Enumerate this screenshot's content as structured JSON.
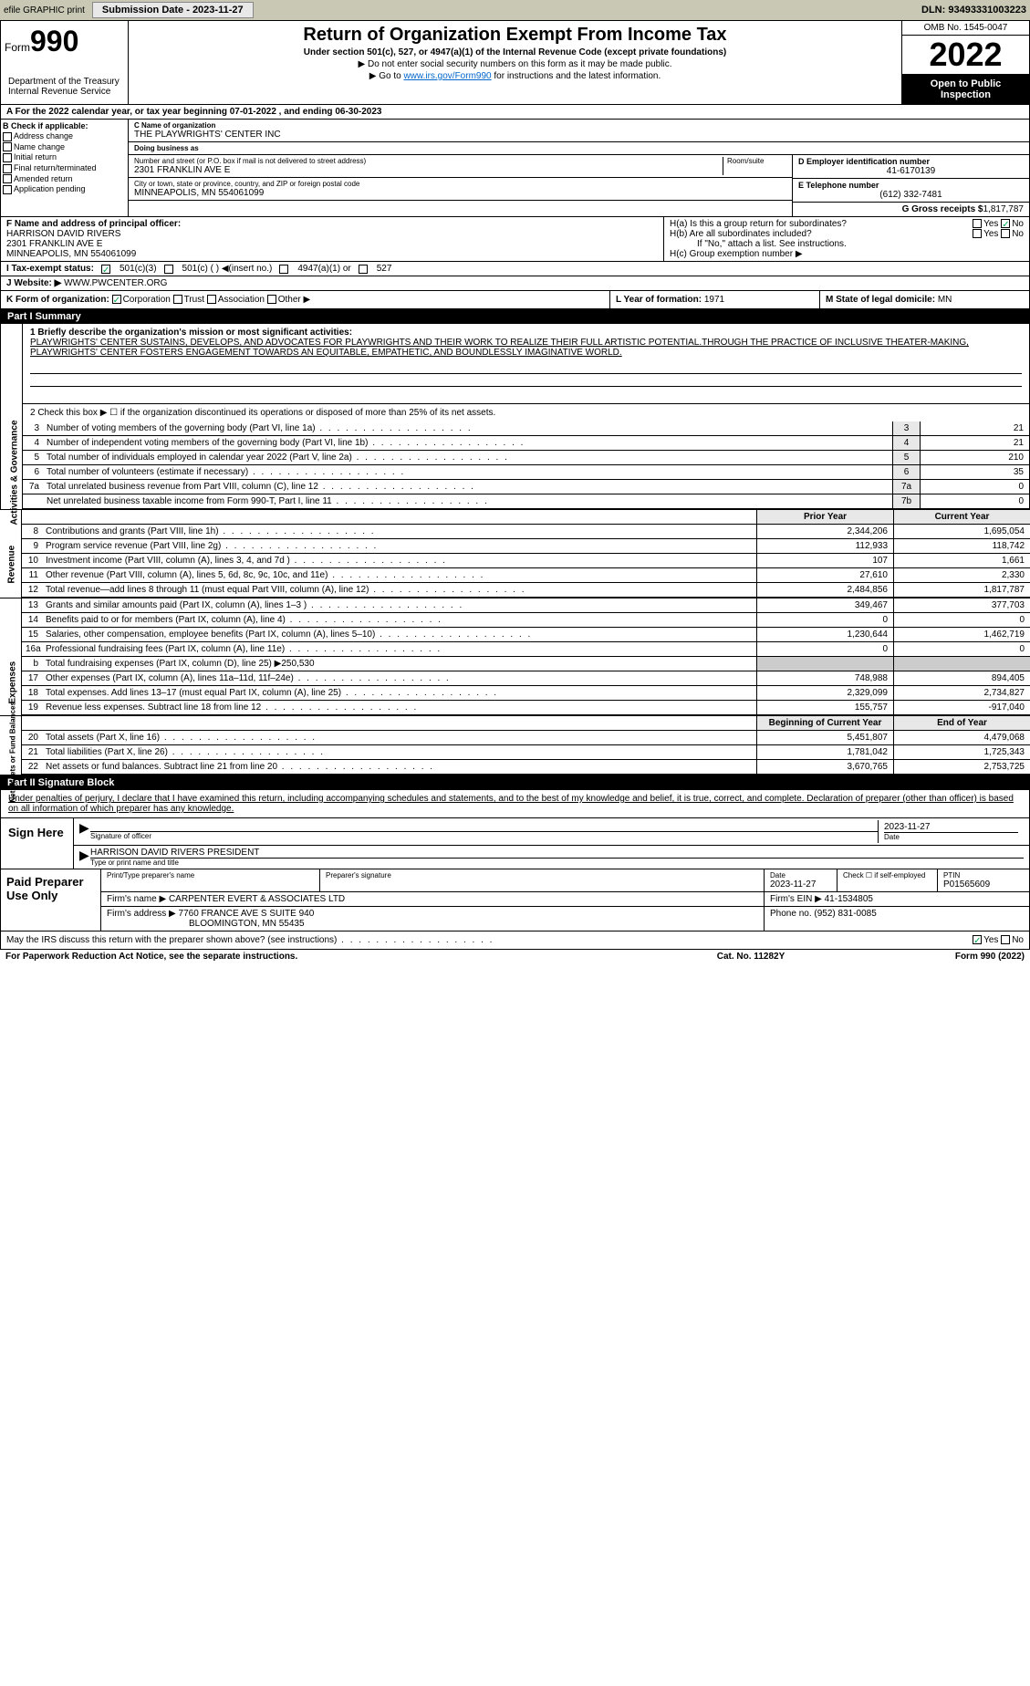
{
  "topbar": {
    "efile": "efile GRAPHIC print",
    "submission_btn": "Submission Date - 2023-11-27",
    "dln": "DLN: 93493331003223"
  },
  "header": {
    "form_prefix": "Form",
    "form_number": "990",
    "title": "Return of Organization Exempt From Income Tax",
    "subtitle": "Under section 501(c), 527, or 4947(a)(1) of the Internal Revenue Code (except private foundations)",
    "note1": "▶ Do not enter social security numbers on this form as it may be made public.",
    "note2_pre": "▶ Go to ",
    "note2_link": "www.irs.gov/Form990",
    "note2_post": " for instructions and the latest information.",
    "omb": "OMB No. 1545-0047",
    "year": "2022",
    "open_pub": "Open to Public Inspection",
    "dept": "Department of the Treasury Internal Revenue Service"
  },
  "sectionA": "A For the 2022 calendar year, or tax year beginning 07-01-2022    , and ending 06-30-2023",
  "checkboxes": {
    "hdr": "B Check if applicable:",
    "addr": "Address change",
    "name": "Name change",
    "init": "Initial return",
    "final": "Final return/terminated",
    "amend": "Amended return",
    "app": "Application pending"
  },
  "org": {
    "name_lbl": "C Name of organization",
    "name": "THE PLAYWRIGHTS' CENTER INC",
    "dba_lbl": "Doing business as",
    "dba": "",
    "addr_lbl": "Number and street (or P.O. box if mail is not delivered to street address)",
    "room_lbl": "Room/suite",
    "addr": "2301 FRANKLIN AVE E",
    "city_lbl": "City or town, state or province, country, and ZIP or foreign postal code",
    "city": "MINNEAPOLIS, MN  554061099"
  },
  "right": {
    "ein_lbl": "D Employer identification number",
    "ein": "41-6170139",
    "phone_lbl": "E Telephone number",
    "phone": "(612) 332-7481",
    "gross_lbl": "G Gross receipts $",
    "gross": "1,817,787"
  },
  "f": {
    "lbl": "F Name and address of principal officer:",
    "name": "HARRISON DAVID RIVERS",
    "addr1": "2301 FRANKLIN AVE E",
    "addr2": "MINNEAPOLIS, MN  554061099"
  },
  "h": {
    "a": "H(a)  Is this a group return for subordinates?",
    "b": "H(b)  Are all subordinates included?",
    "b_note": "If \"No,\" attach a list. See instructions.",
    "c": "H(c)  Group exemption number ▶",
    "yes": "Yes",
    "no": "No"
  },
  "tax_status": {
    "lbl": "I  Tax-exempt status:",
    "c3": "501(c)(3)",
    "c": "501(c) (  ) ◀(insert no.)",
    "a1": "4947(a)(1) or",
    "s527": "527"
  },
  "j": {
    "lbl": "J  Website: ▶",
    "val": " WWW.PWCENTER.ORG"
  },
  "k": {
    "lbl": "K Form of organization:",
    "corp": "Corporation",
    "trust": "Trust",
    "assoc": "Association",
    "other": "Other ▶"
  },
  "l": {
    "lbl": "L Year of formation: ",
    "val": "1971"
  },
  "m": {
    "lbl": "M State of legal domicile: ",
    "val": "MN"
  },
  "part1": {
    "hdr": "Part I       Summary",
    "tab_gov": "Activities & Governance",
    "tab_rev": "Revenue",
    "tab_exp": "Expenses",
    "tab_net": "Net Assets or Fund Balances",
    "line1_lbl": "1  Briefly describe the organization's mission or most significant activities:",
    "mission": "PLAYWRIGHTS' CENTER SUSTAINS, DEVELOPS, AND ADVOCATES FOR PLAYWRIGHTS AND THEIR WORK TO REALIZE THEIR FULL ARTISTIC POTENTIAL.THROUGH THE PRACTICE OF INCLUSIVE THEATER-MAKING, PLAYWRIGHTS' CENTER FOSTERS ENGAGEMENT TOWARDS AN EQUITABLE, EMPATHETIC, AND BOUNDLESSLY IMAGINATIVE WORLD.",
    "line2": "2   Check this box ▶ ☐ if the organization discontinued its operations or disposed of more than 25% of its net assets.",
    "lines": [
      {
        "n": "3",
        "d": "Number of voting members of the governing body (Part VI, line 1a)",
        "box": "3",
        "v": "21"
      },
      {
        "n": "4",
        "d": "Number of independent voting members of the governing body (Part VI, line 1b)",
        "box": "4",
        "v": "21"
      },
      {
        "n": "5",
        "d": "Total number of individuals employed in calendar year 2022 (Part V, line 2a)",
        "box": "5",
        "v": "210"
      },
      {
        "n": "6",
        "d": "Total number of volunteers (estimate if necessary)",
        "box": "6",
        "v": "35"
      },
      {
        "n": "7a",
        "d": "Total unrelated business revenue from Part VIII, column (C), line 12",
        "box": "7a",
        "v": "0"
      },
      {
        "n": "",
        "d": "Net unrelated business taxable income from Form 990-T, Part I, line 11",
        "box": "7b",
        "v": "0"
      }
    ],
    "col_prior": "Prior Year",
    "col_curr": "Current Year",
    "rev": [
      {
        "n": "8",
        "d": "Contributions and grants (Part VIII, line 1h)",
        "p": "2,344,206",
        "c": "1,695,054"
      },
      {
        "n": "9",
        "d": "Program service revenue (Part VIII, line 2g)",
        "p": "112,933",
        "c": "118,742"
      },
      {
        "n": "10",
        "d": "Investment income (Part VIII, column (A), lines 3, 4, and 7d )",
        "p": "107",
        "c": "1,661"
      },
      {
        "n": "11",
        "d": "Other revenue (Part VIII, column (A), lines 5, 6d, 8c, 9c, 10c, and 11e)",
        "p": "27,610",
        "c": "2,330"
      },
      {
        "n": "12",
        "d": "Total revenue—add lines 8 through 11 (must equal Part VIII, column (A), line 12)",
        "p": "2,484,856",
        "c": "1,817,787"
      }
    ],
    "exp": [
      {
        "n": "13",
        "d": "Grants and similar amounts paid (Part IX, column (A), lines 1–3 )",
        "p": "349,467",
        "c": "377,703"
      },
      {
        "n": "14",
        "d": "Benefits paid to or for members (Part IX, column (A), line 4)",
        "p": "0",
        "c": "0"
      },
      {
        "n": "15",
        "d": "Salaries, other compensation, employee benefits (Part IX, column (A), lines 5–10)",
        "p": "1,230,644",
        "c": "1,462,719"
      },
      {
        "n": "16a",
        "d": "Professional fundraising fees (Part IX, column (A), line 11e)",
        "p": "0",
        "c": "0"
      },
      {
        "n": "b",
        "d": "Total fundraising expenses (Part IX, column (D), line 25) ▶250,530",
        "p": "",
        "c": "",
        "gray": true
      },
      {
        "n": "17",
        "d": "Other expenses (Part IX, column (A), lines 11a–11d, 11f–24e)",
        "p": "748,988",
        "c": "894,405"
      },
      {
        "n": "18",
        "d": "Total expenses. Add lines 13–17 (must equal Part IX, column (A), line 25)",
        "p": "2,329,099",
        "c": "2,734,827"
      },
      {
        "n": "19",
        "d": "Revenue less expenses. Subtract line 18 from line 12",
        "p": "155,757",
        "c": "-917,040"
      }
    ],
    "net_hdr1": "Beginning of Current Year",
    "net_hdr2": "End of Year",
    "net": [
      {
        "n": "20",
        "d": "Total assets (Part X, line 16)",
        "p": "5,451,807",
        "c": "4,479,068"
      },
      {
        "n": "21",
        "d": "Total liabilities (Part X, line 26)",
        "p": "1,781,042",
        "c": "1,725,343"
      },
      {
        "n": "22",
        "d": "Net assets or fund balances. Subtract line 21 from line 20",
        "p": "3,670,765",
        "c": "2,753,725"
      }
    ]
  },
  "part2": {
    "hdr": "Part II       Signature Block",
    "intro": "Under penalties of perjury, I declare that I have examined this return, including accompanying schedules and statements, and to the best of my knowledge and belief, it is true, correct, and complete. Declaration of preparer (other than officer) is based on all information of which preparer has any knowledge.",
    "sign_here": "Sign Here",
    "sig_officer": "Signature of officer",
    "sig_date": "2023-11-27",
    "date_lbl": "Date",
    "officer_name": "HARRISON DAVID RIVERS  PRESIDENT",
    "type_name": "Type or print name and title",
    "paid_prep": "Paid Preparer Use Only",
    "prep_name_lbl": "Print/Type preparer's name",
    "prep_sig_lbl": "Preparer's signature",
    "prep_date": "2023-11-27",
    "self_emp": "Check ☐ if self-employed",
    "ptin_lbl": "PTIN",
    "ptin": "P01565609",
    "firm_name_lbl": "Firm's name    ▶",
    "firm_name": "CARPENTER EVERT & ASSOCIATES LTD",
    "firm_ein_lbl": "Firm's EIN ▶",
    "firm_ein": "41-1534805",
    "firm_addr_lbl": "Firm's address ▶",
    "firm_addr1": "7760 FRANCE AVE S SUITE 940",
    "firm_addr2": "BLOOMINGTON, MN  55435",
    "phone_lbl": "Phone no.",
    "phone": "(952) 831-0085",
    "may_irs": "May the IRS discuss this return with the preparer shown above? (see instructions)",
    "yes": "Yes",
    "no": "No"
  },
  "footer": {
    "left": "For Paperwork Reduction Act Notice, see the separate instructions.",
    "mid": "Cat. No. 11282Y",
    "right": "Form 990 (2022)"
  }
}
